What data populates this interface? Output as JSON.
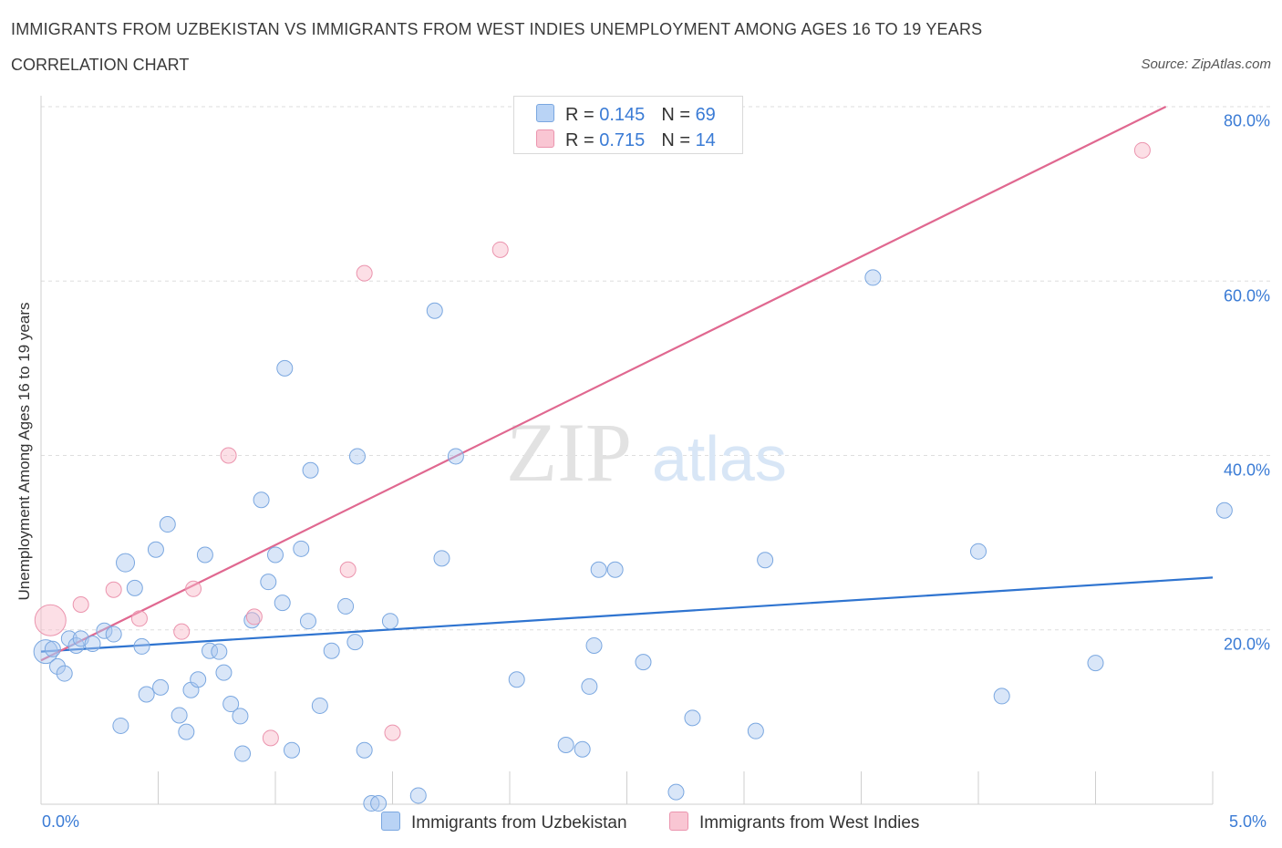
{
  "header": {
    "title": "IMMIGRANTS FROM UZBEKISTAN VS IMMIGRANTS FROM WEST INDIES UNEMPLOYMENT AMONG AGES 16 TO 19 YEARS",
    "subtitle": "CORRELATION CHART",
    "source": "Source: ZipAtlas.com"
  },
  "legend": {
    "rows": [
      {
        "r_label": "R = ",
        "r_value": "0.145",
        "n_label": "N = ",
        "n_value": "69"
      },
      {
        "r_label": "R = ",
        "r_value": "0.715",
        "n_label": "N = ",
        "n_value": "14"
      }
    ]
  },
  "watermark": {
    "zip": "ZIP",
    "atlas": "atlas"
  },
  "chart_data": {
    "type": "scatter",
    "ylabel": "Unemployment Among Ages 16 to 19 years",
    "xlim": [
      0.0,
      5.0
    ],
    "ylim": [
      0.0,
      80.0
    ],
    "x_tick_labels": [
      "0.0%",
      "5.0%"
    ],
    "y_tick_labels": [
      "20.0%",
      "40.0%",
      "60.0%",
      "80.0%"
    ],
    "y_ticks": [
      20,
      40,
      60,
      80
    ],
    "colors": {
      "uzbekistan": "#aac8f0",
      "uzbekistan_line": "#2f74d0",
      "west_indies": "#f8b8c8",
      "west_indies_line": "#e06890",
      "tick_label": "#3a7bd5"
    },
    "series": [
      {
        "name": "Immigrants from Uzbekistan",
        "color": "#aac8f0",
        "trend": {
          "x": [
            0.0,
            5.0
          ],
          "y": [
            17.5,
            26.0
          ]
        },
        "points": [
          [
            0.02,
            17.5
          ],
          [
            0.05,
            17.8
          ],
          [
            0.07,
            15.8
          ],
          [
            0.1,
            15.0
          ],
          [
            0.12,
            19.0
          ],
          [
            0.15,
            18.2
          ],
          [
            0.17,
            19.0
          ],
          [
            0.22,
            18.4
          ],
          [
            0.27,
            19.9
          ],
          [
            0.31,
            19.5
          ],
          [
            0.34,
            9.0
          ],
          [
            0.36,
            27.7
          ],
          [
            0.4,
            24.8
          ],
          [
            0.43,
            18.1
          ],
          [
            0.45,
            12.6
          ],
          [
            0.49,
            29.2
          ],
          [
            0.51,
            13.4
          ],
          [
            0.54,
            32.1
          ],
          [
            0.59,
            10.2
          ],
          [
            0.62,
            8.3
          ],
          [
            0.64,
            13.1
          ],
          [
            0.67,
            14.3
          ],
          [
            0.7,
            28.6
          ],
          [
            0.72,
            17.6
          ],
          [
            0.76,
            17.5
          ],
          [
            0.78,
            15.1
          ],
          [
            0.81,
            11.5
          ],
          [
            0.85,
            10.1
          ],
          [
            0.86,
            5.8
          ],
          [
            0.9,
            21.1
          ],
          [
            0.94,
            34.9
          ],
          [
            0.97,
            25.5
          ],
          [
            1.0,
            28.6
          ],
          [
            1.03,
            23.1
          ],
          [
            1.04,
            50.0
          ],
          [
            1.07,
            6.2
          ],
          [
            1.11,
            29.3
          ],
          [
            1.14,
            21.0
          ],
          [
            1.15,
            38.3
          ],
          [
            1.19,
            11.3
          ],
          [
            1.24,
            17.6
          ],
          [
            1.3,
            22.7
          ],
          [
            1.34,
            18.6
          ],
          [
            1.35,
            39.9
          ],
          [
            1.38,
            6.2
          ],
          [
            1.41,
            0.1
          ],
          [
            1.44,
            0.1
          ],
          [
            1.49,
            21.0
          ],
          [
            1.61,
            1.0
          ],
          [
            1.68,
            56.6
          ],
          [
            1.71,
            28.2
          ],
          [
            1.77,
            39.9
          ],
          [
            2.03,
            14.3
          ],
          [
            2.24,
            6.8
          ],
          [
            2.31,
            6.3
          ],
          [
            2.34,
            13.5
          ],
          [
            2.36,
            18.2
          ],
          [
            2.38,
            26.9
          ],
          [
            2.45,
            26.9
          ],
          [
            2.57,
            16.3
          ],
          [
            2.71,
            1.4
          ],
          [
            2.78,
            9.9
          ],
          [
            3.05,
            8.4
          ],
          [
            3.09,
            28.0
          ],
          [
            3.55,
            60.4
          ],
          [
            4.0,
            29.0
          ],
          [
            4.1,
            12.4
          ],
          [
            5.05,
            33.7
          ],
          [
            4.5,
            16.2
          ]
        ]
      },
      {
        "name": "Immigrants from West Indies",
        "color": "#f8b8c8",
        "trend": {
          "x": [
            0.0,
            4.8
          ],
          "y": [
            16.5,
            80.0
          ]
        },
        "points": [
          [
            0.04,
            21.1
          ],
          [
            0.17,
            22.9
          ],
          [
            0.31,
            24.6
          ],
          [
            0.42,
            21.3
          ],
          [
            0.6,
            19.8
          ],
          [
            0.65,
            24.7
          ],
          [
            0.8,
            40.0
          ],
          [
            0.91,
            21.5
          ],
          [
            0.98,
            7.6
          ],
          [
            1.31,
            26.9
          ],
          [
            1.38,
            60.9
          ],
          [
            1.5,
            8.2
          ],
          [
            1.96,
            63.6
          ],
          [
            4.7,
            75.0
          ]
        ]
      }
    ]
  },
  "bottom_legend": {
    "items": [
      {
        "label": "Immigrants from Uzbekistan"
      },
      {
        "label": "Immigrants from West Indies"
      }
    ]
  }
}
